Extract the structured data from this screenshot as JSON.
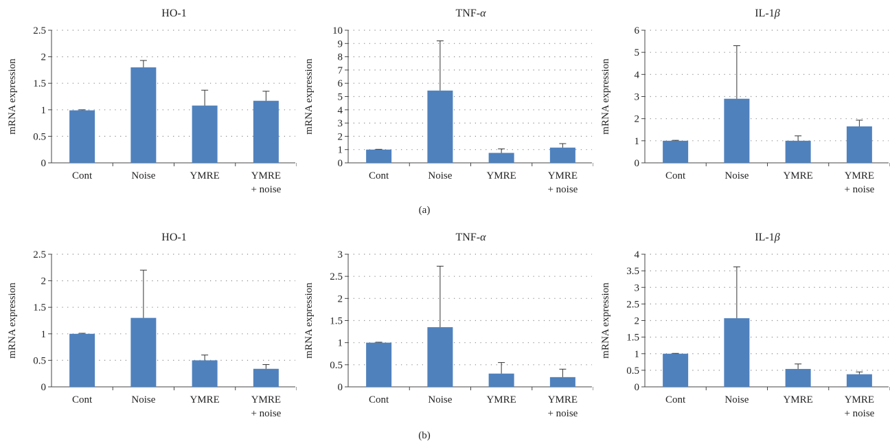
{
  "panels": [
    {
      "label": "(a)"
    },
    {
      "label": "(b)"
    }
  ],
  "bar_color": "#4f81bd",
  "chart_data": [
    {
      "type": "bar",
      "panel": "(a)",
      "title": "HO-1",
      "ylabel": "mRNA expression",
      "xlabel": "",
      "ylim": [
        0,
        2.5
      ],
      "yticks": [
        "0",
        "0.5",
        "1",
        "1.5",
        "2",
        "2.5"
      ],
      "ytick_values": [
        0,
        0.5,
        1,
        1.5,
        2,
        2.5
      ],
      "categories": [
        [
          "Cont"
        ],
        [
          "Noise"
        ],
        [
          "YMRE"
        ],
        [
          "YMRE",
          "+ noise"
        ]
      ],
      "values": [
        0.99,
        1.8,
        1.08,
        1.17
      ],
      "errors": [
        0.01,
        0.13,
        0.29,
        0.18
      ],
      "grid": true
    },
    {
      "type": "bar",
      "panel": "(a)",
      "title": "TNF-α",
      "ylabel": "mRNA expression",
      "xlabel": "",
      "ylim": [
        0,
        10
      ],
      "yticks": [
        "0",
        "1",
        "2",
        "3",
        "4",
        "5",
        "6",
        "7",
        "8",
        "9",
        "10"
      ],
      "ytick_values": [
        0,
        1,
        2,
        3,
        4,
        5,
        6,
        7,
        8,
        9,
        10
      ],
      "categories": [
        [
          "Cont"
        ],
        [
          "Noise"
        ],
        [
          "YMRE"
        ],
        [
          "YMRE",
          "+ noise"
        ]
      ],
      "values": [
        1.0,
        5.45,
        0.75,
        1.15
      ],
      "errors": [
        0.02,
        3.75,
        0.3,
        0.3
      ],
      "grid": true
    },
    {
      "type": "bar",
      "panel": "(a)",
      "title": "IL-1β",
      "ylabel": "mRNA expression",
      "xlabel": "",
      "ylim": [
        0,
        6
      ],
      "yticks": [
        "0",
        "1",
        "2",
        "3",
        "4",
        "5",
        "6"
      ],
      "ytick_values": [
        0,
        1,
        2,
        3,
        4,
        5,
        6
      ],
      "categories": [
        [
          "Cont"
        ],
        [
          "Noise"
        ],
        [
          "YMRE"
        ],
        [
          "YMRE",
          "+ noise"
        ]
      ],
      "values": [
        1.0,
        2.9,
        1.0,
        1.65
      ],
      "errors": [
        0.02,
        2.4,
        0.22,
        0.28
      ],
      "grid": true
    },
    {
      "type": "bar",
      "panel": "(b)",
      "title": "HO-1",
      "ylabel": "mRNA expression",
      "xlabel": "",
      "ylim": [
        0,
        2.5
      ],
      "yticks": [
        "0",
        "0.5",
        "1",
        "1.5",
        "2",
        "2.5"
      ],
      "ytick_values": [
        0,
        0.5,
        1,
        1.5,
        2,
        2.5
      ],
      "categories": [
        [
          "Cont"
        ],
        [
          "Noise"
        ],
        [
          "YMRE"
        ],
        [
          "YMRE",
          "+ noise"
        ]
      ],
      "values": [
        1.0,
        1.3,
        0.5,
        0.34
      ],
      "errors": [
        0.01,
        0.9,
        0.1,
        0.08
      ],
      "grid": true
    },
    {
      "type": "bar",
      "panel": "(b)",
      "title": "TNF-α",
      "ylabel": "mRNA expression",
      "xlabel": "",
      "ylim": [
        0,
        3
      ],
      "yticks": [
        "0",
        "0.5",
        "1",
        "1.5",
        "2",
        "2.5",
        "3"
      ],
      "ytick_values": [
        0,
        0.5,
        1,
        1.5,
        2,
        2.5,
        3
      ],
      "categories": [
        [
          "Cont"
        ],
        [
          "Noise"
        ],
        [
          "YMRE"
        ],
        [
          "YMRE",
          "+ noise"
        ]
      ],
      "values": [
        1.0,
        1.35,
        0.3,
        0.22
      ],
      "errors": [
        0.01,
        1.38,
        0.25,
        0.18
      ],
      "grid": true
    },
    {
      "type": "bar",
      "panel": "(b)",
      "title": "IL-1β",
      "ylabel": "mRNA expression",
      "xlabel": "",
      "ylim": [
        0,
        4
      ],
      "yticks": [
        "0",
        "0.5",
        "1",
        "1.5",
        "2",
        "2.5",
        "3",
        "3.5",
        "4"
      ],
      "ytick_values": [
        0,
        0.5,
        1,
        1.5,
        2,
        2.5,
        3,
        3.5,
        4
      ],
      "categories": [
        [
          "Cont"
        ],
        [
          "Noise"
        ],
        [
          "YMRE"
        ],
        [
          "YMRE",
          "+ noise"
        ]
      ],
      "values": [
        1.0,
        2.07,
        0.54,
        0.38
      ],
      "errors": [
        0.01,
        1.55,
        0.15,
        0.07
      ],
      "grid": true
    }
  ]
}
